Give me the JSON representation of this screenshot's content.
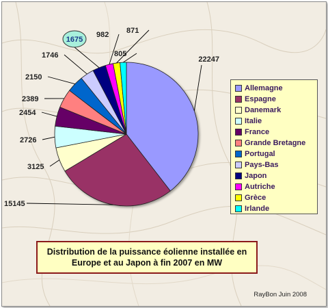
{
  "chart_data": {
    "type": "pie",
    "title": "Distribution de la puissance éolienne installée en\nEurope et au Japon à fin 2007 en MW",
    "credit": "RayBon Juin 2008",
    "legend_position": "right",
    "slices": [
      {
        "label": "Allemagne",
        "value": 22247,
        "color": "#9999ff"
      },
      {
        "label": "Espagne",
        "value": 15145,
        "color": "#993366"
      },
      {
        "label": "Danemark",
        "value": 3125,
        "color": "#ffffcc"
      },
      {
        "label": "Italie",
        "value": 2726,
        "color": "#ccffff"
      },
      {
        "label": "France",
        "value": 2454,
        "color": "#660066"
      },
      {
        "label": "Grande Bretagne",
        "value": 2389,
        "color": "#ff8080"
      },
      {
        "label": "Portugal",
        "value": 2150,
        "color": "#0066cc"
      },
      {
        "label": "Pays-Bas",
        "value": 1746,
        "color": "#ccccff"
      },
      {
        "label": "Japon",
        "value": 1675,
        "color": "#000080"
      },
      {
        "label": "Autriche",
        "value": 982,
        "color": "#ff00ff"
      },
      {
        "label": "Grèce",
        "value": 871,
        "color": "#ffff00"
      },
      {
        "label": "Irlande",
        "value": 805,
        "color": "#00ffff"
      }
    ]
  }
}
